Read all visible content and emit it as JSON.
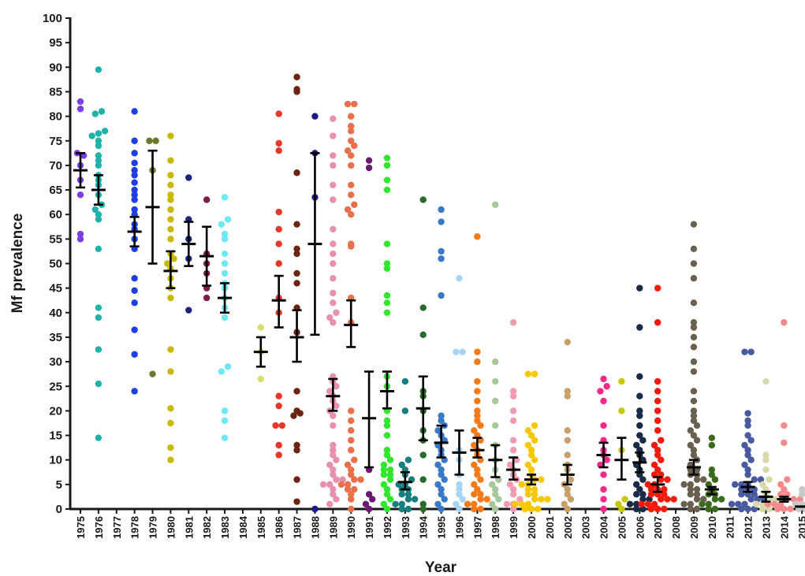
{
  "chart_data": {
    "type": "scatter",
    "subtype": "column dot plot with mean and SEM error bars",
    "xlabel": "Year",
    "ylabel": "Mf prevalence",
    "ylim": [
      0,
      100
    ],
    "y_ticks": [
      0,
      5,
      10,
      15,
      20,
      25,
      30,
      35,
      40,
      45,
      50,
      55,
      60,
      65,
      70,
      75,
      80,
      85,
      90,
      95,
      100
    ],
    "grid": false,
    "legend": "none",
    "categories": [
      "1975",
      "1976",
      "1977",
      "1978",
      "1979",
      "1980",
      "1981",
      "1982",
      "1983",
      "1984",
      "1985",
      "1986",
      "1987",
      "1988",
      "1989",
      "1990",
      "1991",
      "1992",
      "1993",
      "1994",
      "1995",
      "1996",
      "1997",
      "1998",
      "1999",
      "2000",
      "2001",
      "2002",
      "2003",
      "2004",
      "2005",
      "2006",
      "2007",
      "2008",
      "2009",
      "2010",
      "2011",
      "2012",
      "2013",
      "2014",
      "2015"
    ],
    "series": [
      {
        "year": "1975",
        "color": "#7b3fe4",
        "mean": 69,
        "sem_low": 65.5,
        "sem_high": 72.5,
        "points": [
          55,
          56,
          64,
          67,
          70,
          72.5,
          72,
          81.5,
          83
        ]
      },
      {
        "year": "1976",
        "color": "#20b2aa",
        "mean": 65,
        "sem_low": 62,
        "sem_high": 68,
        "points": [
          14.5,
          25.5,
          32.5,
          39,
          41,
          53,
          59,
          60,
          61,
          62,
          64,
          66,
          67,
          68,
          70,
          71,
          72,
          74,
          75,
          76,
          76.5,
          77,
          80.5,
          81,
          89.5
        ]
      },
      {
        "year": "1977",
        "color": "#888888",
        "points": []
      },
      {
        "year": "1978",
        "color": "#1e3ee8",
        "mean": 56.5,
        "sem_low": 53.5,
        "sem_high": 59.5,
        "points": [
          24,
          31.5,
          36.5,
          42,
          44.5,
          47,
          53,
          55,
          57,
          58,
          60,
          61,
          63,
          64,
          65,
          66.5,
          68,
          69,
          70.5,
          72.5,
          75,
          81
        ]
      },
      {
        "year": "1979",
        "color": "#6b7a2a",
        "mean": 61.5,
        "sem_low": 50,
        "sem_high": 73,
        "points": [
          27.5,
          69,
          75,
          75
        ]
      },
      {
        "year": "1980",
        "color": "#c9b800",
        "mean": 48.5,
        "sem_low": 45,
        "sem_high": 52.5,
        "points": [
          10,
          12.5,
          17.5,
          20.5,
          28,
          32.5,
          43,
          45,
          47,
          49,
          50,
          51,
          52,
          55,
          57,
          59,
          61,
          63,
          64,
          66,
          68,
          71,
          76
        ]
      },
      {
        "year": "1981",
        "color": "#1a237e",
        "mean": 54,
        "sem_low": 49.5,
        "sem_high": 58.5,
        "points": [
          40.5,
          51,
          55,
          59,
          67.5
        ]
      },
      {
        "year": "1982",
        "color": "#7b1f4a",
        "mean": 51.5,
        "sem_low": 45.5,
        "sem_high": 57.5,
        "points": [
          43,
          45,
          48,
          50,
          52,
          63
        ]
      },
      {
        "year": "1983",
        "color": "#6fe8f5",
        "mean": 43,
        "sem_low": 40,
        "sem_high": 46,
        "points": [
          14.5,
          18,
          20,
          28,
          29,
          39,
          41,
          43,
          45,
          46,
          48,
          50,
          52,
          55,
          56,
          58,
          59,
          63.5
        ]
      },
      {
        "year": "1984",
        "color": "#888888",
        "points": []
      },
      {
        "year": "1985",
        "color": "#d8e06a",
        "mean": 32,
        "sem_low": 29,
        "sem_high": 35,
        "points": [
          26.5,
          32,
          37
        ]
      },
      {
        "year": "1986",
        "color": "#e8362a",
        "mean": 42.5,
        "sem_low": 37,
        "sem_high": 47.5,
        "points": [
          11,
          13,
          17,
          17,
          21,
          23,
          40,
          43,
          50,
          54,
          57,
          60.5,
          73,
          74.5,
          80.5
        ]
      },
      {
        "year": "1987",
        "color": "#6b2410",
        "mean": 35,
        "sem_low": 30,
        "sem_high": 40.5,
        "points": [
          1.5,
          6,
          12,
          13,
          19,
          19.5,
          20,
          24,
          36,
          41,
          46,
          48,
          52,
          53,
          58,
          68.5,
          85,
          85.5,
          88
        ]
      },
      {
        "year": "1988",
        "color": "#1a1a8a",
        "mean": 54,
        "sem_low": 35.5,
        "sem_high": 72.5,
        "points": [
          0,
          63.5,
          72.5,
          80
        ]
      },
      {
        "year": "1989",
        "color": "#e890b0",
        "mean": 23,
        "sem_low": 20,
        "sem_high": 26.5,
        "points": [
          1,
          2,
          3,
          4,
          5,
          5,
          6,
          6,
          7,
          8,
          9,
          10,
          11,
          12,
          13,
          17,
          19,
          20,
          21,
          22,
          23,
          24,
          25,
          26,
          27,
          38,
          39,
          40,
          42,
          44,
          47,
          50,
          52,
          54,
          57,
          63,
          66,
          70,
          72,
          76,
          79.5
        ]
      },
      {
        "year": "1990",
        "color": "#e8704a",
        "mean": 37.5,
        "sem_low": 33,
        "sem_high": 42.5,
        "points": [
          0,
          2,
          3,
          4,
          4,
          5,
          5,
          6,
          6,
          7,
          8,
          9,
          10,
          12,
          14,
          16,
          18,
          20,
          38,
          43,
          53.5,
          54,
          60,
          61,
          62,
          64,
          66,
          70,
          72,
          73,
          74,
          75,
          77,
          78,
          80,
          82.5,
          82.5
        ]
      },
      {
        "year": "1991",
        "color": "#6a1a70",
        "mean": 18.5,
        "sem_low": 8.5,
        "sem_high": 28,
        "points": [
          0,
          1,
          2,
          3,
          8,
          69.5,
          71
        ]
      },
      {
        "year": "1992",
        "color": "#2ee82a",
        "mean": 24,
        "sem_low": 20.5,
        "sem_high": 28,
        "points": [
          0,
          1,
          2,
          3,
          4,
          5,
          6,
          7,
          7,
          8,
          8,
          9,
          10,
          11,
          12,
          15,
          17,
          18,
          20,
          25,
          27,
          40,
          42,
          43.5,
          49,
          50,
          54,
          65,
          67,
          70,
          71.5
        ]
      },
      {
        "year": "1993",
        "color": "#168080",
        "mean": 5.5,
        "sem_low": 4,
        "sem_high": 7.5,
        "points": [
          0,
          0,
          1,
          1,
          2,
          2,
          3,
          3,
          4,
          4,
          5,
          5,
          6,
          7,
          8,
          9,
          10,
          20,
          26
        ]
      },
      {
        "year": "1994",
        "color": "#2a6a2a",
        "mean": 20.5,
        "sem_low": 14,
        "sem_high": 27,
        "points": [
          0,
          1,
          6,
          11,
          14,
          16,
          20,
          23,
          24,
          35.5,
          41,
          63
        ]
      },
      {
        "year": "1995",
        "color": "#3a78c8",
        "mean": 13.5,
        "sem_low": 10.5,
        "sem_high": 17,
        "points": [
          0,
          1,
          2,
          3,
          4,
          5,
          6,
          7,
          8,
          9,
          10,
          11,
          12,
          13,
          14,
          15,
          16,
          17,
          18,
          19,
          43.5,
          51,
          52.5,
          58.5,
          61
        ]
      },
      {
        "year": "1996",
        "color": "#a8d4f5",
        "mean": 11.5,
        "sem_low": 7,
        "sem_high": 16,
        "points": [
          0,
          1,
          2,
          3,
          4,
          5,
          7,
          10,
          12,
          32,
          32,
          47
        ]
      },
      {
        "year": "1997",
        "color": "#f57a1a",
        "mean": 12,
        "sem_low": 10.5,
        "sem_high": 14.5,
        "points": [
          0,
          0,
          1,
          1,
          2,
          2,
          3,
          3,
          4,
          5,
          6,
          7,
          8,
          9,
          10,
          11,
          12,
          13,
          14,
          15,
          16,
          17,
          18,
          19,
          20,
          22,
          24,
          26,
          30,
          32,
          55.5
        ]
      },
      {
        "year": "1998",
        "color": "#a8c89a",
        "mean": 10,
        "sem_low": 6.5,
        "sem_high": 13,
        "points": [
          0,
          1,
          2,
          3,
          4,
          5,
          6,
          8,
          10,
          13,
          17,
          22,
          26,
          30,
          62
        ]
      },
      {
        "year": "1999",
        "color": "#f59ab0",
        "mean": 8,
        "sem_low": 6,
        "sem_high": 10.5,
        "points": [
          0,
          1,
          1,
          2,
          3,
          4,
          5,
          6,
          7,
          8,
          9,
          10,
          12,
          14,
          18,
          20,
          23,
          24,
          38
        ]
      },
      {
        "year": "2000",
        "color": "#f5c800",
        "mean": 6,
        "sem_low": 5,
        "sem_high": 7,
        "points": [
          0,
          0,
          0,
          1,
          1,
          1,
          2,
          2,
          2,
          3,
          3,
          4,
          4,
          5,
          5,
          6,
          6,
          7,
          8,
          9,
          10,
          11,
          12,
          13,
          14,
          15,
          16,
          17,
          27.5,
          27.5
        ]
      },
      {
        "year": "2001",
        "color": "#888888",
        "points": []
      },
      {
        "year": "2002",
        "color": "#c8a06a",
        "mean": 7,
        "sem_low": 5,
        "sem_high": 9,
        "points": [
          0,
          1,
          2,
          3,
          4,
          5,
          6,
          8,
          9,
          11,
          14,
          16,
          23,
          24,
          34
        ]
      },
      {
        "year": "2003",
        "color": "#888888",
        "points": []
      },
      {
        "year": "2004",
        "color": "#f52a8a",
        "mean": 11,
        "sem_low": 8.5,
        "sem_high": 13.5,
        "points": [
          0,
          2,
          4,
          7,
          9,
          10,
          11,
          12,
          14,
          17,
          22,
          24,
          25,
          26.5
        ]
      },
      {
        "year": "2005",
        "color": "#c8c800",
        "mean": 10,
        "sem_low": 6,
        "sem_high": 14.5,
        "points": [
          0,
          1,
          2,
          12,
          20,
          26
        ]
      },
      {
        "year": "2006",
        "color": "#1a2a4a",
        "mean": 9.5,
        "sem_low": 7.5,
        "sem_high": 11.5,
        "points": [
          0,
          0,
          1,
          1,
          2,
          2,
          3,
          3,
          4,
          5,
          6,
          7,
          8,
          9,
          10,
          11,
          12,
          13,
          14,
          15,
          17,
          19,
          20,
          23,
          27,
          37,
          45
        ]
      },
      {
        "year": "2007",
        "color": "#f51a0a",
        "mean": 5,
        "sem_low": 3.5,
        "sem_high": 6.5,
        "points": [
          0,
          0,
          0,
          1,
          1,
          1,
          2,
          2,
          2,
          3,
          3,
          3,
          4,
          4,
          4,
          5,
          5,
          6,
          6,
          7,
          7,
          8,
          9,
          10,
          11,
          12,
          13,
          14,
          16,
          18,
          20,
          22,
          24,
          26,
          38,
          45
        ]
      },
      {
        "year": "2008",
        "color": "#888888",
        "points": []
      },
      {
        "year": "2009",
        "color": "#6a6050",
        "mean": 8.5,
        "sem_low": 7,
        "sem_high": 10,
        "points": [
          0,
          0,
          1,
          1,
          2,
          2,
          3,
          3,
          4,
          4,
          5,
          5,
          6,
          6,
          7,
          7,
          8,
          8,
          9,
          10,
          11,
          12,
          13,
          14,
          15,
          16,
          17,
          18,
          19,
          20,
          22,
          24,
          28,
          30,
          33,
          35,
          37,
          38,
          42,
          47,
          50,
          53,
          58
        ]
      },
      {
        "year": "2010",
        "color": "#3a6a1a",
        "mean": 4,
        "sem_low": 3,
        "sem_high": 4.5,
        "points": [
          0,
          0,
          1,
          1,
          2,
          2,
          3,
          3,
          4,
          5,
          6,
          7,
          8,
          13,
          14.5
        ]
      },
      {
        "year": "2011",
        "color": "#888888",
        "points": []
      },
      {
        "year": "2012",
        "color": "#4a5aa0",
        "mean": 4.5,
        "sem_low": 3.5,
        "sem_high": 5.5,
        "points": [
          0,
          0,
          0,
          1,
          1,
          1,
          2,
          2,
          2,
          3,
          3,
          3,
          4,
          4,
          4,
          5,
          5,
          5,
          6,
          6,
          7,
          8,
          9,
          10,
          11,
          12,
          13,
          14,
          15,
          17,
          18,
          19.5,
          32,
          32
        ]
      },
      {
        "year": "2013",
        "color": "#d8d8a8",
        "mean": 2.5,
        "sem_low": 1.5,
        "sem_high": 3.5,
        "points": [
          0,
          0,
          1,
          1,
          2,
          2,
          3,
          4,
          5,
          6,
          8,
          10,
          11,
          26
        ]
      },
      {
        "year": "2014",
        "color": "#f58a8a",
        "mean": 2,
        "sem_low": 1.5,
        "sem_high": 2.5,
        "points": [
          0,
          0,
          0,
          1,
          1,
          1,
          2,
          2,
          2,
          3,
          3,
          4,
          5,
          6,
          13.5,
          17,
          38
        ]
      },
      {
        "year": "2015",
        "color": "#c8c8c8",
        "mean": 0.5,
        "sem_low": 0.5,
        "sem_high": 0.5,
        "points": [
          0,
          0,
          1,
          1,
          2,
          3,
          4
        ]
      }
    ]
  }
}
